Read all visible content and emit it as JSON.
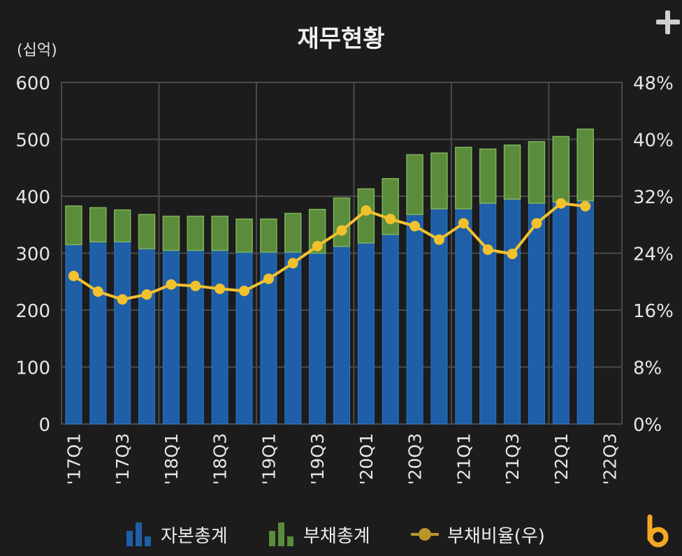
{
  "title": "재무현황",
  "unit_label": "(십억)",
  "legend": [
    {
      "label": "자본총계",
      "icon": "bar-chart-icon",
      "color": "#1f5fa8"
    },
    {
      "label": "부채총계",
      "icon": "bar-chart-icon",
      "color": "#5a8c3c"
    },
    {
      "label": "부채비율(우)",
      "icon": "line-marker-icon",
      "color": "#f2c12e"
    }
  ],
  "chart_data": {
    "type": "bar",
    "stacked": true,
    "categories": [
      "'17Q1",
      "'17Q2",
      "'17Q3",
      "'17Q4",
      "'18Q1",
      "'18Q2",
      "'18Q3",
      "'18Q4",
      "'19Q1",
      "'19Q2",
      "'19Q3",
      "'19Q4",
      "'20Q1",
      "'20Q2",
      "'20Q3",
      "'20Q4",
      "'21Q1",
      "'21Q2",
      "'21Q3",
      "'21Q4",
      "'22Q1",
      "'22Q2",
      "'22Q3"
    ],
    "x_tick_labels": [
      "'17Q1",
      "'17Q3",
      "'18Q1",
      "'18Q3",
      "'19Q1",
      "'19Q3",
      "'20Q1",
      "'20Q3",
      "'21Q1",
      "'21Q3",
      "'22Q1",
      "'22Q3"
    ],
    "y_ticks": [
      "0",
      "100",
      "200",
      "300",
      "400",
      "500",
      "600"
    ],
    "y2_ticks": [
      "0%",
      "8%",
      "16%",
      "24%",
      "32%",
      "40%",
      "48%"
    ],
    "ylim": [
      0,
      600
    ],
    "y2lim": [
      0,
      48
    ],
    "grid": true,
    "legend_position": "bottom",
    "series": [
      {
        "name": "자본총계",
        "type": "bar",
        "axis": "left",
        "color": "#1f5fa8",
        "values": [
          315,
          320,
          320,
          308,
          305,
          305,
          305,
          302,
          302,
          302,
          300,
          312,
          318,
          333,
          368,
          378,
          378,
          388,
          395,
          388,
          390,
          392,
          null
        ]
      },
      {
        "name": "부채총계",
        "type": "bar",
        "axis": "left",
        "color": "#5a8c3c",
        "values": [
          68,
          60,
          56,
          60,
          60,
          60,
          60,
          58,
          58,
          68,
          77,
          85,
          95,
          98,
          105,
          98,
          108,
          95,
          95,
          108,
          115,
          126,
          null
        ]
      },
      {
        "name": "부채비율(우)",
        "type": "line",
        "axis": "right",
        "color": "#f2c12e",
        "values": [
          20.8,
          18.6,
          17.5,
          18.2,
          19.6,
          19.4,
          19.0,
          18.7,
          20.4,
          22.6,
          25.0,
          27.2,
          30.0,
          28.8,
          27.8,
          25.9,
          28.2,
          24.5,
          23.9,
          28.2,
          31.0,
          30.6,
          null
        ]
      }
    ]
  }
}
